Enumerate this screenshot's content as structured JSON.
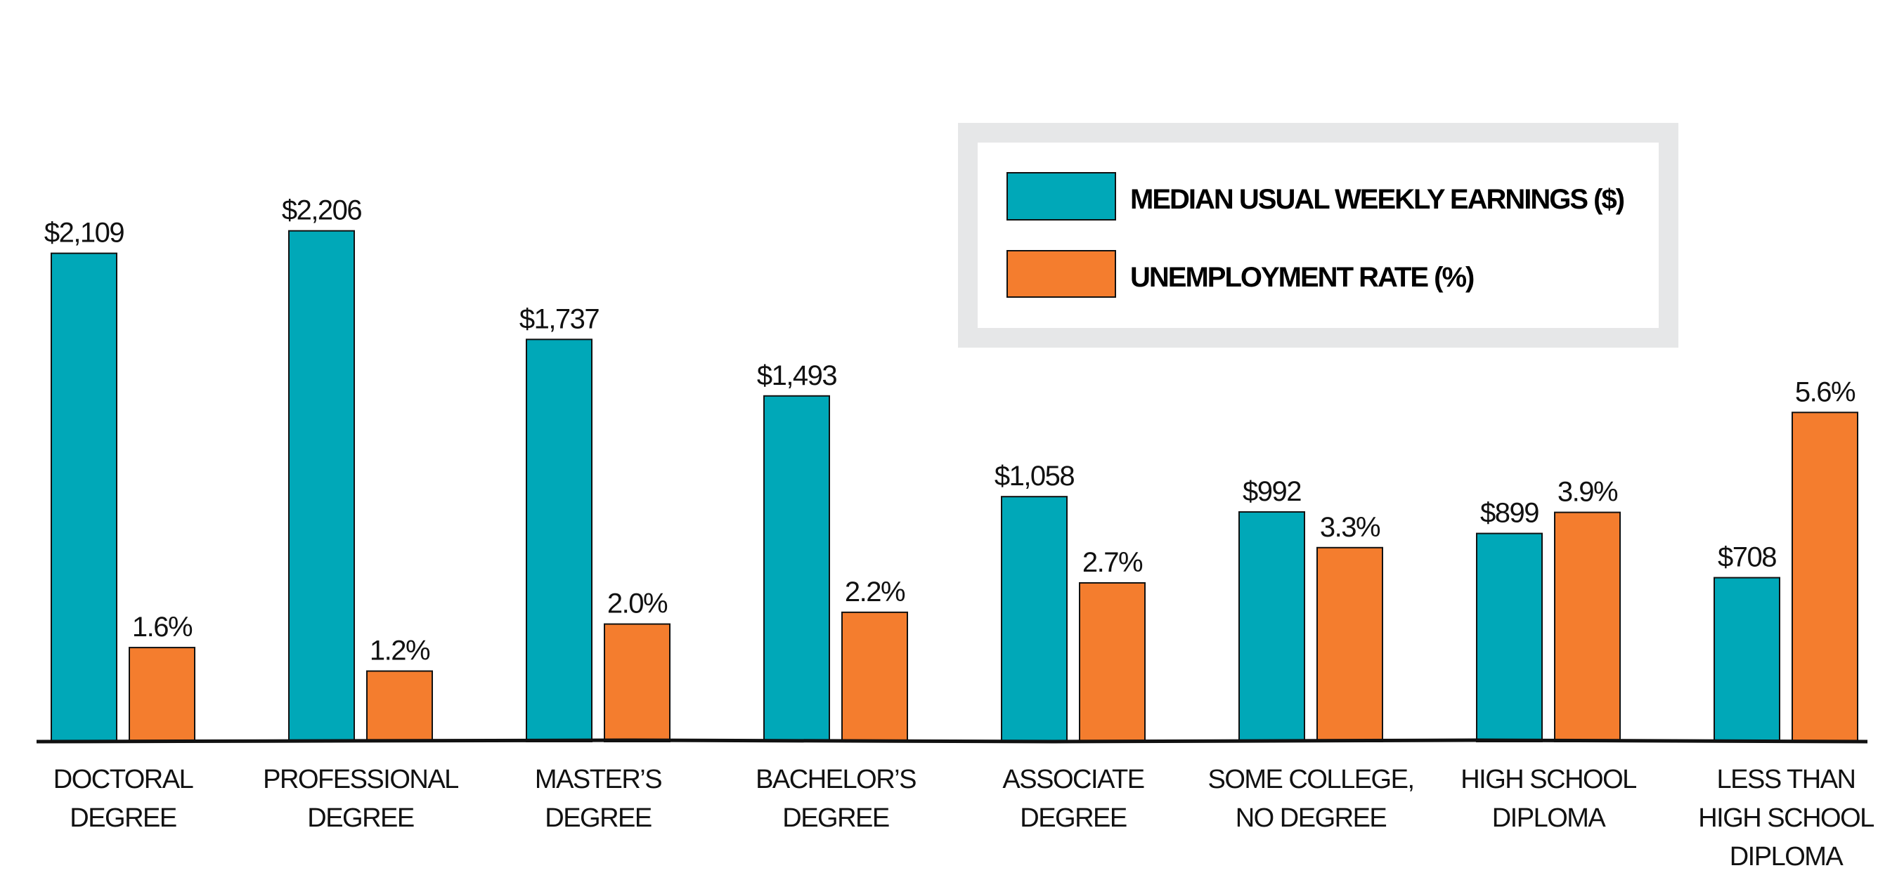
{
  "chart_data": {
    "type": "bar",
    "categories": [
      [
        "DOCTORAL",
        "DEGREE"
      ],
      [
        "PROFESSIONAL",
        "DEGREE"
      ],
      [
        "MASTER’S",
        "DEGREE"
      ],
      [
        "BACHELOR’S",
        "DEGREE"
      ],
      [
        "ASSOCIATE",
        "DEGREE"
      ],
      [
        "SOME COLLEGE,",
        "NO DEGREE"
      ],
      [
        "HIGH SCHOOL",
        "DIPLOMA"
      ],
      [
        "LESS THAN",
        "HIGH SCHOOL",
        "DIPLOMA"
      ]
    ],
    "series": [
      {
        "name": "MEDIAN USUAL WEEKLY EARNINGS ($)",
        "color": "#00A8B8",
        "values": [
          2109,
          2206,
          1737,
          1493,
          1058,
          992,
          899,
          708
        ],
        "labels": [
          "$2,109",
          "$2,206",
          "$1,737",
          "$1,493",
          "$1,058",
          "$992",
          "$899",
          "$708"
        ]
      },
      {
        "name": "UNEMPLOYMENT RATE (%)",
        "color": "#F47D2E",
        "values": [
          1.6,
          1.2,
          2.0,
          2.2,
          2.7,
          3.3,
          3.9,
          5.6
        ],
        "labels": [
          "1.6%",
          "1.2%",
          "2.0%",
          "2.2%",
          "2.7%",
          "3.3%",
          "3.9%",
          "5.6%"
        ]
      }
    ],
    "legend_position": "top-right",
    "grid": false,
    "y_axis_shown": false
  }
}
